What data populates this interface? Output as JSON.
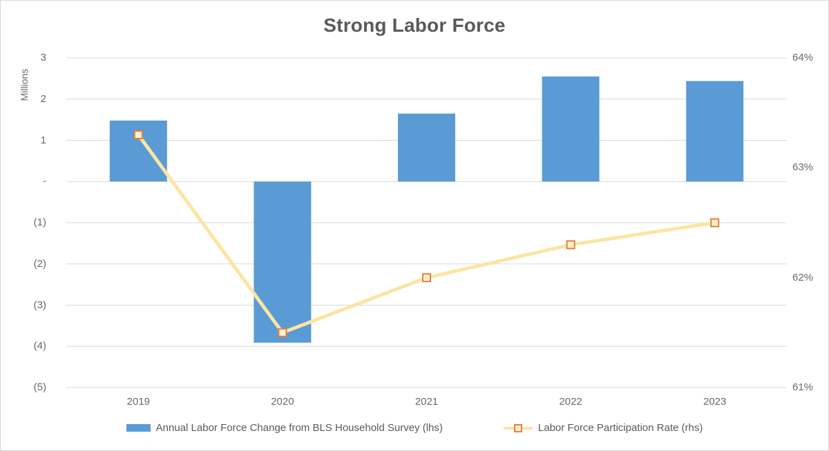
{
  "chart": {
    "title": "Strong Labor Force",
    "left_axis_title": "Millions"
  },
  "legend": {
    "items": [
      {
        "label": "Annual Labor Force Change from BLS Household Survey (lhs)",
        "type": "bar"
      },
      {
        "label": "Labor Force Participation Rate (rhs)",
        "type": "line"
      }
    ]
  },
  "colors": {
    "bar": "#5B9BD5",
    "line": "#FBE5A2",
    "marker_stroke": "#ED7D31",
    "marker_fill": "#FDF2D7",
    "gridline": "#D9D9D9",
    "title_text": "#595959",
    "tick_text": "#696969"
  },
  "chart_data": {
    "type": "bar",
    "subtype": "combo bar + line, dual axis",
    "title": "Strong Labor Force",
    "categories": [
      "2019",
      "2020",
      "2021",
      "2022",
      "2023"
    ],
    "series": [
      {
        "name": "Annual Labor Force Change from BLS Household Survey (lhs)",
        "type": "bar",
        "axis": "left",
        "values": [
          1.48,
          -3.91,
          1.65,
          2.55,
          2.44
        ]
      },
      {
        "name": "Labor Force Participation Rate (rhs)",
        "type": "line",
        "axis": "right",
        "values": [
          63.3,
          61.5,
          62.0,
          62.3,
          62.5
        ]
      }
    ],
    "left_axis": {
      "label": "Millions",
      "tick_labels": [
        "3",
        "2",
        "1",
        "-",
        "(1)",
        "(2)",
        "(3)",
        "(4)",
        "(5)"
      ],
      "tick_values": [
        3,
        2,
        1,
        0,
        -1,
        -2,
        -3,
        -4,
        -5
      ],
      "range": [
        -5,
        3
      ]
    },
    "right_axis": {
      "label": "",
      "tick_labels": [
        "64%",
        "63%",
        "62%",
        "61%"
      ],
      "tick_values": [
        64,
        63,
        62,
        61
      ],
      "range": [
        61,
        64
      ]
    },
    "grid": true,
    "legend_position": "bottom"
  }
}
